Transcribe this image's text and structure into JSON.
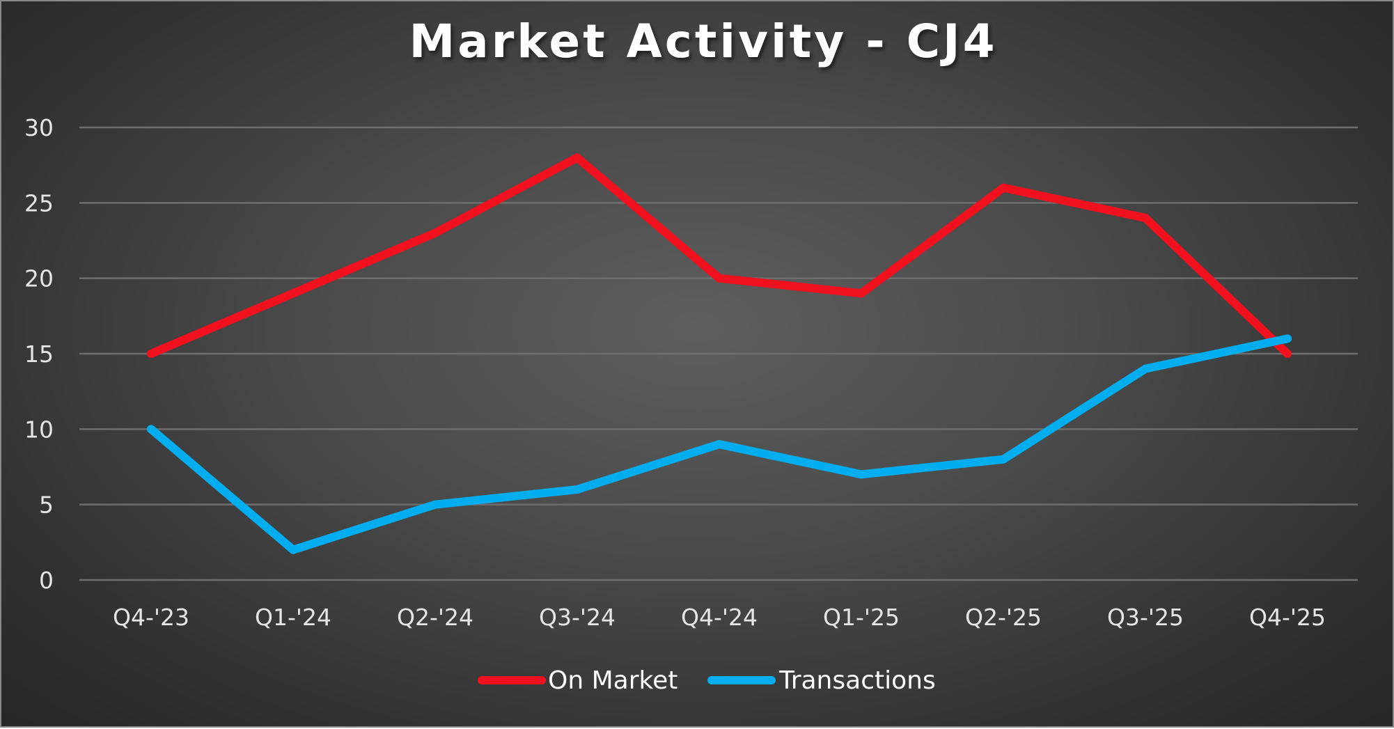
{
  "chart_data": {
    "type": "line",
    "title": "Market Activity - CJ4",
    "xlabel": "",
    "ylabel": "",
    "categories": [
      "Q4-'23",
      "Q1-'24",
      "Q2-'24",
      "Q3-'24",
      "Q4-'24",
      "Q1-'25",
      "Q2-'25",
      "Q3-'25",
      "Q4-'25"
    ],
    "y_ticks": [
      "0",
      "5",
      "10",
      "15",
      "20",
      "25",
      "30"
    ],
    "ylim": [
      0,
      30
    ],
    "grid": true,
    "legend_position": "bottom",
    "series": [
      {
        "name": "On Market",
        "color": "#f0101e",
        "values": [
          15,
          19,
          23,
          28,
          20,
          19,
          26,
          24,
          15
        ]
      },
      {
        "name": "Transactions",
        "color": "#00aeef",
        "values": [
          10,
          2,
          5,
          6,
          9,
          7,
          8,
          14,
          16
        ]
      }
    ]
  }
}
